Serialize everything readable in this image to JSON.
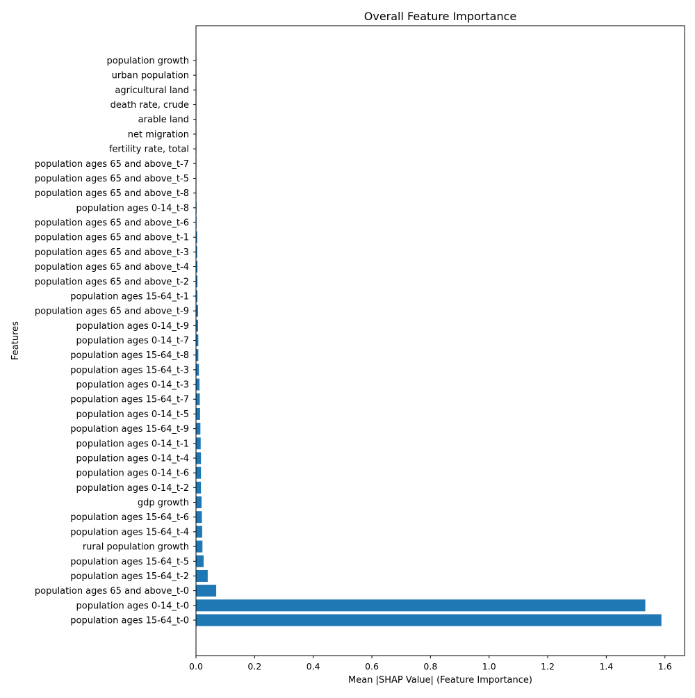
{
  "chart_data": {
    "type": "bar",
    "orientation": "horizontal",
    "title": "Overall Feature Importance",
    "xlabel": "Mean |SHAP Value| (Feature Importance)",
    "ylabel": "Features",
    "xlim": [
      0,
      1.667
    ],
    "xticks": [
      0.0,
      0.2,
      0.4,
      0.6,
      0.8,
      1.0,
      1.2,
      1.4,
      1.6
    ],
    "xtick_labels": [
      "0.0",
      "0.2",
      "0.4",
      "0.6",
      "0.8",
      "1.0",
      "1.2",
      "1.4",
      "1.6"
    ],
    "grid": false,
    "bar_color": "#1f77b4",
    "categories": [
      "population ages 15-64_t-0",
      "population ages 0-14_t-0",
      "population ages 65 and above_t-0",
      "population ages 15-64_t-2",
      "population ages 15-64_t-5",
      "rural population growth",
      "population ages 15-64_t-4",
      "population ages 15-64_t-6",
      "gdp growth",
      "population ages 0-14_t-2",
      "population ages 0-14_t-6",
      "population ages 0-14_t-4",
      "population ages 0-14_t-1",
      "population ages 15-64_t-9",
      "population ages 0-14_t-5",
      "population ages 15-64_t-7",
      "population ages 0-14_t-3",
      "population ages 15-64_t-3",
      "population ages 15-64_t-8",
      "population ages 0-14_t-7",
      "population ages 0-14_t-9",
      "population ages 65 and above_t-9",
      "population ages 15-64_t-1",
      "population ages 65 and above_t-2",
      "population ages 65 and above_t-4",
      "population ages 65 and above_t-3",
      "population ages 65 and above_t-1",
      "population ages 65 and above_t-6",
      "population ages 0-14_t-8",
      "population ages 65 and above_t-8",
      "population ages 65 and above_t-5",
      "population ages 65 and above_t-7",
      "fertility rate, total",
      "net migration",
      "arable land",
      "death rate, crude",
      "agricultural land",
      "urban population",
      "population growth"
    ],
    "values": [
      1.588,
      1.533,
      0.069,
      0.04,
      0.026,
      0.022,
      0.021,
      0.02,
      0.019,
      0.017,
      0.017,
      0.017,
      0.016,
      0.015,
      0.014,
      0.013,
      0.012,
      0.01,
      0.008,
      0.008,
      0.007,
      0.007,
      0.005,
      0.005,
      0.005,
      0.004,
      0.004,
      0.002,
      0.002,
      0.001,
      0.001,
      0.001,
      0.0005,
      0.0005,
      0.0005,
      0.0005,
      0.0003,
      0.0003,
      0.0003
    ]
  }
}
